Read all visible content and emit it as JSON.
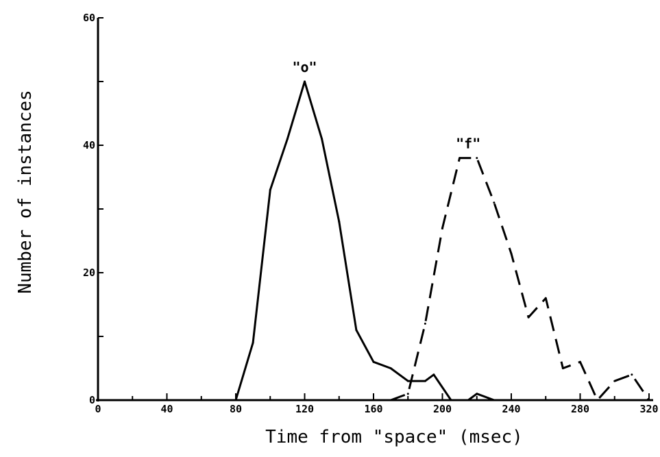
{
  "chart_data": {
    "type": "line",
    "title": "",
    "xlabel": "Time from \"space\" (msec)",
    "ylabel": "Number of instances",
    "xlim": [
      0,
      320
    ],
    "ylim": [
      0,
      60
    ],
    "x_ticks": [
      "0",
      "40",
      "80",
      "120",
      "160",
      "200",
      "240",
      "280",
      "320"
    ],
    "y_ticks": [
      "0",
      "20",
      "40",
      "60"
    ],
    "grid": false,
    "series": [
      {
        "name": "\"o\"",
        "line_style": "solid",
        "color": "#000000",
        "points": [
          [
            80,
            0
          ],
          [
            90,
            9
          ],
          [
            100,
            33
          ],
          [
            110,
            41
          ],
          [
            120,
            50
          ],
          [
            130,
            41
          ],
          [
            140,
            28
          ],
          [
            150,
            11
          ],
          [
            160,
            6
          ],
          [
            170,
            5
          ],
          [
            180,
            3
          ],
          [
            190,
            3
          ],
          [
            195,
            4
          ],
          [
            205,
            0
          ],
          [
            215,
            0
          ],
          [
            220,
            1
          ],
          [
            230,
            0
          ]
        ]
      },
      {
        "name": "\"f\"",
        "line_style": "dashed",
        "color": "#000000",
        "points": [
          [
            170,
            0
          ],
          [
            180,
            1
          ],
          [
            190,
            12
          ],
          [
            200,
            27
          ],
          [
            210,
            38
          ],
          [
            220,
            38
          ],
          [
            230,
            31
          ],
          [
            240,
            23
          ],
          [
            250,
            13
          ],
          [
            260,
            16
          ],
          [
            270,
            5
          ],
          [
            280,
            6
          ],
          [
            290,
            0
          ],
          [
            300,
            3
          ],
          [
            310,
            4
          ],
          [
            320,
            0
          ]
        ]
      }
    ],
    "annotations": [
      {
        "text": "\"o\"",
        "x": 120,
        "y": 50,
        "series": "\"o\""
      },
      {
        "text": "\"f\"",
        "x": 215,
        "y": 38,
        "series": "\"f\""
      }
    ]
  }
}
